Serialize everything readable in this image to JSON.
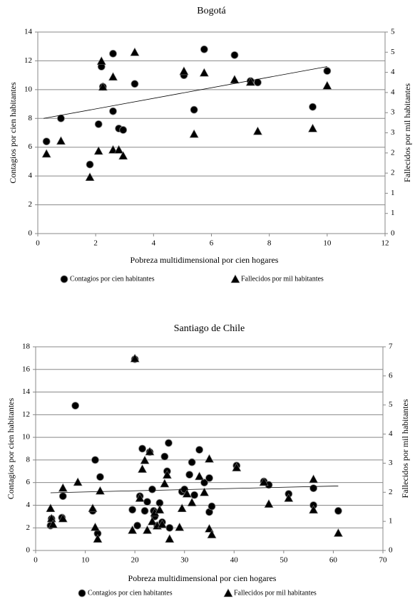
{
  "chart_data": [
    {
      "type": "scatter",
      "title": "Bogotá",
      "xlabel": "Pobreza multidimensional por cien hogares",
      "ylabel": "Contagios por cien habitantes",
      "y2label": "Fallecidos por mil habitantes",
      "xlim": [
        0,
        12
      ],
      "xticks": [
        0,
        2,
        4,
        6,
        8,
        10,
        12
      ],
      "ylim": [
        0,
        14
      ],
      "yticks": [
        0,
        2,
        4,
        6,
        8,
        10,
        12,
        14
      ],
      "y2lim": [
        0,
        5
      ],
      "y2ticks": [
        0,
        {
          "value": 0.5,
          "label": "1"
        },
        1,
        {
          "value": 1.5,
          "label": "2"
        },
        2,
        {
          "value": 2.5,
          "label": "3"
        },
        3,
        {
          "value": 3.5,
          "label": "4"
        },
        4,
        {
          "value": 4.5,
          "label": "5"
        },
        5
      ],
      "grid": true,
      "series": [
        {
          "name": "Contagios por cien habitantes",
          "color": "#000000",
          "marker": "circle",
          "x": [
            0.3,
            0.8,
            1.8,
            2.1,
            2.2,
            2.25,
            2.6,
            2.6,
            2.8,
            2.95,
            3.35,
            5.05,
            5.4,
            5.75,
            6.8,
            7.35,
            7.6,
            9.5,
            10
          ],
          "values": [
            6.4,
            8.0,
            4.8,
            7.6,
            11.6,
            10.2,
            12.5,
            8.5,
            7.3,
            7.2,
            10.4,
            11.0,
            8.6,
            12.8,
            12.4,
            10.6,
            10.5,
            8.8,
            11.3
          ]
        },
        {
          "name": "Fallecidos por mil habitantes",
          "color": "#000000",
          "marker": "triangle",
          "axis": "y2",
          "x": [
            0.3,
            0.8,
            1.8,
            2.1,
            2.2,
            2.25,
            2.6,
            2.6,
            2.8,
            2.95,
            3.35,
            5.05,
            5.4,
            5.75,
            6.8,
            7.35,
            7.6,
            9.5,
            10
          ],
          "values": [
            1.98,
            2.3,
            1.4,
            2.05,
            4.28,
            3.64,
            3.89,
            2.08,
            2.08,
            1.93,
            4.5,
            4.03,
            2.47,
            3.99,
            3.82,
            3.76,
            2.54,
            2.61,
            3.67
          ]
        }
      ],
      "trend": {
        "x": [
          0.2,
          10
        ],
        "values": [
          8.0,
          11.6
        ]
      }
    },
    {
      "type": "scatter",
      "title": "Santiago de Chile",
      "xlabel": "Pobreza multidimensional por cien hogares",
      "ylabel": "Contagios por cien habitantes",
      "y2label": "Fallecidos por mil habitantes",
      "xlim": [
        0,
        70
      ],
      "xticks": [
        0,
        10,
        20,
        30,
        40,
        50,
        60,
        70
      ],
      "ylim": [
        0,
        18
      ],
      "yticks": [
        0,
        2,
        4,
        6,
        8,
        10,
        12,
        14,
        16,
        18
      ],
      "y2lim": [
        0,
        7
      ],
      "y2ticks": [
        0,
        1,
        2,
        3,
        4,
        5,
        6,
        7
      ],
      "grid": true,
      "series": [
        {
          "name": "Contagios por cien habitantes",
          "color": "#000000",
          "marker": "circle",
          "x": [
            3,
            3.2,
            5.3,
            5.5,
            8,
            11.5,
            12,
            12.5,
            13,
            19.5,
            20,
            20.5,
            21,
            21.5,
            22,
            22.5,
            23,
            23.5,
            23.8,
            24,
            24.5,
            25,
            25.5,
            26,
            26.5,
            26.8,
            27,
            29.5,
            30,
            31,
            31.5,
            32,
            33,
            34,
            35,
            35,
            35.5,
            40.5,
            46,
            47,
            51,
            56,
            56,
            61
          ],
          "values": [
            2.2,
            2.8,
            2.9,
            4.8,
            12.8,
            3.5,
            8,
            1.5,
            6.5,
            3.6,
            16.9,
            2.2,
            4.8,
            9,
            3.5,
            4.3,
            8.7,
            5.4,
            3.5,
            3,
            2.2,
            4.2,
            2.5,
            8.3,
            7,
            9.5,
            2,
            5.2,
            5.4,
            6.7,
            7.8,
            4.9,
            8.9,
            6,
            6.4,
            3.4,
            3.9,
            7.5,
            6.1,
            5.8,
            5,
            5.5,
            4,
            3.5
          ]
        },
        {
          "name": "Fallecidos por mil habitantes",
          "color": "#000000",
          "marker": "triangle",
          "axis": "y2",
          "x": [
            3,
            3.2,
            3.5,
            5.5,
            5.5,
            8.5,
            11.5,
            12,
            12.5,
            13,
            19.5,
            20,
            21,
            21.5,
            22,
            22.5,
            23,
            23.5,
            24,
            24.5,
            25,
            25.5,
            26,
            26.5,
            27,
            29,
            29.5,
            30.5,
            31.5,
            33,
            34,
            35,
            35,
            35.5,
            40.5,
            46,
            47,
            51,
            56,
            56,
            61
          ],
          "values": [
            1.45,
            1.1,
            0.9,
            2.15,
            1.1,
            2.35,
            1.45,
            0.8,
            0.4,
            2.05,
            0.7,
            6.6,
            1.8,
            2.8,
            3.1,
            0.7,
            3.4,
            1.0,
            1.3,
            0.85,
            1.4,
            0.9,
            2.3,
            2.6,
            0.4,
            0.8,
            1.45,
            1.95,
            1.65,
            2.55,
            2.0,
            3.15,
            0.75,
            0.55,
            2.85,
            2.35,
            1.6,
            1.8,
            2.45,
            1.4,
            0.6
          ]
        }
      ],
      "trend": {
        "x": [
          3,
          61
        ],
        "values": [
          5.1,
          5.7
        ]
      }
    }
  ]
}
